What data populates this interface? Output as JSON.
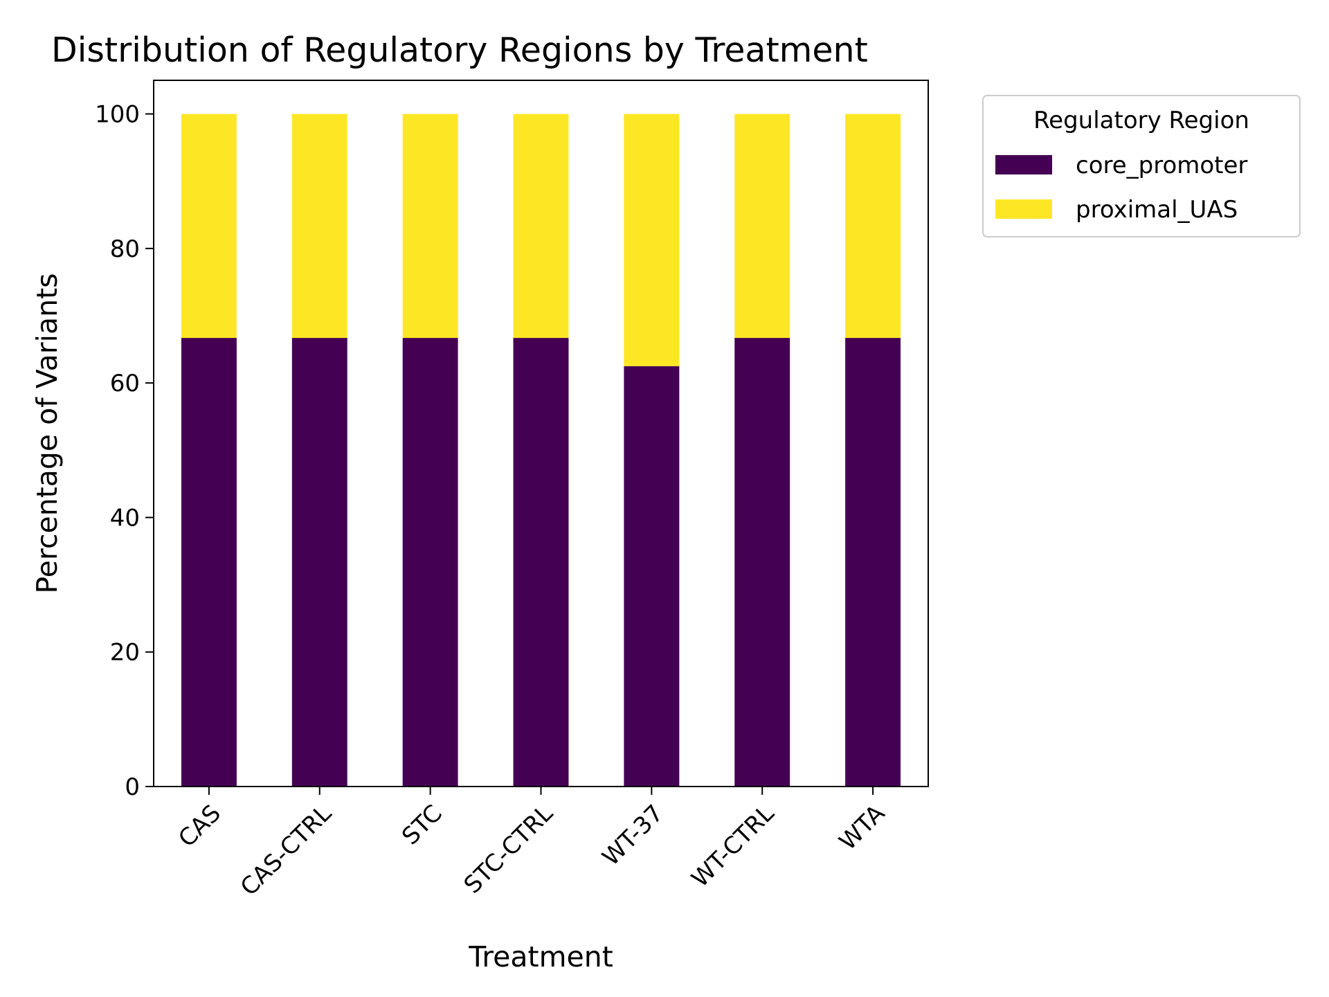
{
  "chart_data": {
    "type": "bar",
    "stacked": true,
    "title": "Distribution of Regulatory Regions by Treatment",
    "xlabel": "Treatment",
    "ylabel": "Percentage of Variants",
    "categories": [
      "CAS",
      "CAS-CTRL",
      "STC",
      "STC-CTRL",
      "WT-37",
      "WT-CTRL",
      "WTA"
    ],
    "series": [
      {
        "name": "core_promoter",
        "color": "#440154",
        "values": [
          66.7,
          66.7,
          66.7,
          66.7,
          62.5,
          66.7,
          66.7
        ]
      },
      {
        "name": "proximal_UAS",
        "color": "#fde725",
        "values": [
          33.3,
          33.3,
          33.3,
          33.3,
          37.5,
          33.3,
          33.3
        ]
      }
    ],
    "ylim": [
      0,
      105
    ],
    "yticks": [
      0,
      20,
      40,
      60,
      80,
      100
    ],
    "grid": false,
    "legend": {
      "title": "Regulatory Region",
      "placement": "outside-top-right"
    }
  }
}
